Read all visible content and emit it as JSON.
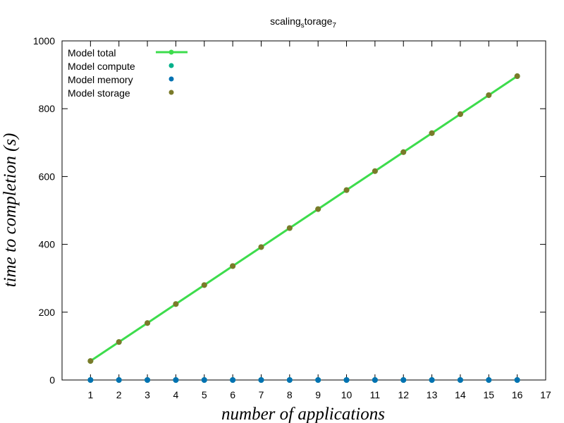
{
  "chart_data": {
    "type": "line",
    "title": "scaling",
    "title_sub": "s",
    "title_rest": "torage",
    "title_sub2": "7",
    "xlabel": "number of applications",
    "ylabel": "time to completion (s)",
    "xlim": [
      0,
      17
    ],
    "ylim": [
      0,
      1000
    ],
    "xticks": [
      1,
      2,
      3,
      4,
      5,
      6,
      7,
      8,
      9,
      10,
      11,
      12,
      13,
      14,
      15,
      16,
      17
    ],
    "yticks": [
      0,
      200,
      400,
      600,
      800,
      1000
    ],
    "grid": false,
    "legend_position": "top-left",
    "x": [
      1,
      2,
      3,
      4,
      5,
      6,
      7,
      8,
      9,
      10,
      11,
      12,
      13,
      14,
      15,
      16
    ],
    "series": [
      {
        "name": "Model total",
        "style": "line-points",
        "color": "#3ddc4c",
        "values": [
          56,
          112,
          168,
          224,
          280,
          336,
          392,
          448,
          504,
          560,
          616,
          672,
          728,
          784,
          840,
          896
        ]
      },
      {
        "name": "Model compute",
        "style": "points",
        "color": "#00b08a",
        "values": [
          0,
          0,
          0,
          0,
          0,
          0,
          0,
          0,
          0,
          0,
          0,
          0,
          0,
          0,
          0,
          0
        ]
      },
      {
        "name": "Model memory",
        "style": "points",
        "color": "#0072b2",
        "values": [
          0,
          0,
          0,
          0,
          0,
          0,
          0,
          0,
          0,
          0,
          0,
          0,
          0,
          0,
          0,
          0
        ]
      },
      {
        "name": "Model storage",
        "style": "points",
        "color": "#7a7a2a",
        "values": [
          56,
          112,
          168,
          224,
          280,
          336,
          392,
          448,
          504,
          560,
          616,
          672,
          728,
          784,
          840,
          896
        ]
      }
    ]
  }
}
